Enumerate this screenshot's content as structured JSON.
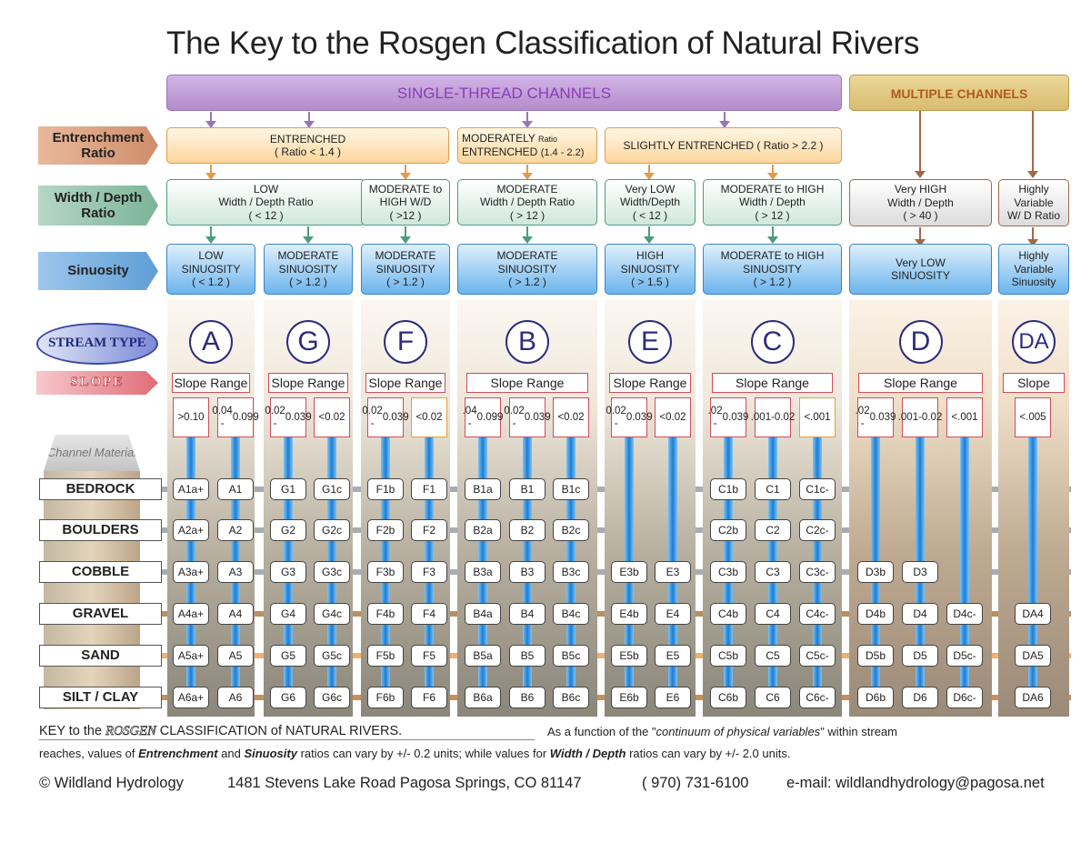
{
  "title": "The Key to the Rosgen Classification of Natural Rivers",
  "banners": {
    "single": "SINGLE-THREAD  CHANNELS",
    "multi": "MULTIPLE  CHANNELS"
  },
  "row_labels": {
    "entrenchment": "Entrenchment Ratio",
    "width_depth": "Width / Depth Ratio",
    "sinuosity": "Sinuosity",
    "stream_type": "STREAM TYPE",
    "slope": "SLOPE",
    "channel_material": "Channel Material"
  },
  "entrenchment": {
    "entrenched": [
      "ENTRENCHED",
      "( Ratio  < 1.4 )"
    ],
    "moderately": [
      "MODERATELY",
      "Ratio",
      "ENTRENCHED",
      "(1.4 - 2.2)"
    ],
    "slightly": "SLIGHTLY  ENTRENCHED ( Ratio > 2.2 )"
  },
  "width_depth": [
    [
      "LOW",
      "Width / Depth Ratio",
      "( < 12 )"
    ],
    [
      "MODERATE to",
      "HIGH   W/D",
      "( >12 )"
    ],
    [
      "MODERATE",
      "Width / Depth Ratio",
      "( > 12 )"
    ],
    [
      "Very LOW",
      "Width/Depth",
      "( < 12 )"
    ],
    [
      "MODERATE to HIGH",
      "Width / Depth",
      "( > 12 )"
    ],
    [
      "Very HIGH",
      "Width / Depth",
      "( > 40 )"
    ],
    [
      "Highly",
      "Variable",
      "W/ D Ratio"
    ]
  ],
  "sinuosity": [
    [
      "LOW",
      "SINUOSITY",
      "( < 1.2 )"
    ],
    [
      "MODERATE",
      "SINUOSITY",
      "( > 1.2 )"
    ],
    [
      "MODERATE",
      "SINUOSITY",
      "( > 1.2 )"
    ],
    [
      "MODERATE",
      "SINUOSITY",
      "( > 1.2 )"
    ],
    [
      "HIGH",
      "SINUOSITY",
      "( > 1.5 )"
    ],
    [
      "MODERATE to HIGH",
      "SINUOSITY",
      "( > 1.2 )"
    ],
    [
      "Very LOW",
      "SINUOSITY"
    ],
    [
      "Highly",
      "Variable",
      "Sinuosity"
    ]
  ],
  "materials": [
    "BEDROCK",
    "BOULDERS",
    "COBBLE",
    "GRAVEL",
    "SAND",
    "SILT / CLAY"
  ],
  "stream_types": [
    {
      "letter": "A",
      "slope_label": "Slope Range",
      "columns": [
        {
          "slope": [
            ">",
            "0.10"
          ],
          "cells": [
            "A1a+",
            "A2a+",
            "A3a+",
            "A4a+",
            "A5a+",
            "A6a+"
          ]
        },
        {
          "slope": [
            "0.04 -",
            "0.099"
          ],
          "cells": [
            "A1",
            "A2",
            "A3",
            "A4",
            "A5",
            "A6"
          ]
        }
      ]
    },
    {
      "letter": "G",
      "slope_label": "Slope Range",
      "columns": [
        {
          "slope": [
            "0.02 -",
            "0.039"
          ],
          "cells": [
            "G1",
            "G2",
            "G3",
            "G4",
            "G5",
            "G6"
          ]
        },
        {
          "slope": [
            "<0.02"
          ],
          "cells": [
            "G1c",
            "G2c",
            "G3c",
            "G4c",
            "G5c",
            "G6c"
          ]
        }
      ]
    },
    {
      "letter": "F",
      "slope_label": "Slope Range",
      "columns": [
        {
          "slope": [
            "0.02 -",
            "0.039"
          ],
          "cells": [
            "F1b",
            "F2b",
            "F3b",
            "F4b",
            "F5b",
            "F6b"
          ]
        },
        {
          "slope": [
            "<0.02"
          ],
          "cells": [
            "F1",
            "F2",
            "F3",
            "F4",
            "F5",
            "F6"
          ]
        }
      ]
    },
    {
      "letter": "B",
      "slope_label": "Slope  Range",
      "columns": [
        {
          "slope": [
            ".04 -",
            "0.099"
          ],
          "cells": [
            "B1a",
            "B2a",
            "B3a",
            "B4a",
            "B5a",
            "B6a"
          ]
        },
        {
          "slope": [
            "0.02 -",
            "0.039"
          ],
          "cells": [
            "B1",
            "B2",
            "B3",
            "B4",
            "B5",
            "B6"
          ]
        },
        {
          "slope": [
            "<0.02"
          ],
          "cells": [
            "B1c",
            "B2c",
            "B3c",
            "B4c",
            "B5c",
            "B6c"
          ]
        }
      ]
    },
    {
      "letter": "E",
      "slope_label": "Slope Range",
      "columns": [
        {
          "slope": [
            "0.02 -",
            "0.039"
          ],
          "cells": [
            "",
            "",
            "E3b",
            "E4b",
            "E5b",
            "E6b"
          ]
        },
        {
          "slope": [
            "<0.02"
          ],
          "cells": [
            "",
            "",
            "E3",
            "E4",
            "E5",
            "E6"
          ]
        }
      ]
    },
    {
      "letter": "C",
      "slope_label": "Slope  Range",
      "columns": [
        {
          "slope": [
            ".02 -",
            "0.039"
          ],
          "cells": [
            "C1b",
            "C2b",
            "C3b",
            "C4b",
            "C5b",
            "C6b"
          ]
        },
        {
          "slope": [
            ".001-",
            "0.02"
          ],
          "cells": [
            "C1",
            "C2",
            "C3",
            "C4",
            "C5",
            "C6"
          ]
        },
        {
          "slope": [
            "<.001"
          ],
          "cells": [
            "C1c-",
            "C2c-",
            "C3c-",
            "C4c-",
            "C5c-",
            "C6c-"
          ]
        }
      ]
    },
    {
      "letter": "D",
      "slope_label": "Slope  Range",
      "columns": [
        {
          "slope": [
            ".02 -",
            "0.039"
          ],
          "cells": [
            "",
            "",
            "D3b",
            "D4b",
            "D5b",
            "D6b"
          ]
        },
        {
          "slope": [
            ".001-",
            "0.02"
          ],
          "cells": [
            "",
            "",
            "D3",
            "D4",
            "D5",
            "D6"
          ]
        },
        {
          "slope": [
            "<.001"
          ],
          "cells": [
            "",
            "",
            "",
            "D4c-",
            "D5c-",
            "D6c-"
          ]
        }
      ]
    },
    {
      "letter": "DA",
      "slope_label": "Slope",
      "columns": [
        {
          "slope": [
            "<.005"
          ],
          "cells": [
            "",
            "",
            "",
            "DA4",
            "DA5",
            "DA6"
          ]
        }
      ]
    }
  ],
  "footer": {
    "key_title": "KEY to the ROSGEN  CLASSIFICATION of NATURAL RIVERS.",
    "key_title_parts": [
      "KEY to the ",
      "ROSGEN",
      "  CLASSIFICATION of NATURAL RIVERS."
    ],
    "note_1": "As a function of the  \"continuum of physical variables\"  within stream",
    "note_1_parts": [
      "As a function of the  \"",
      "continuum of physical variables",
      "\"  within stream"
    ],
    "note_2": "reaches, values of  Entrenchment and Sinuosity  ratios can vary by +/- 0.2 units; while values for Width / Depth  ratios can vary by +/- 2.0 units.",
    "note_2_parts": [
      "reaches, values of  ",
      "Entrenchment",
      " and ",
      "Sinuosity",
      "  ratios can vary by +/- 0.2 units; while values for ",
      "Width / Depth",
      "  ratios can vary by +/- 2.0 units."
    ],
    "contact": "© Wildland Hydrology      1481 Stevens Lake Road Pagosa Springs, CO 81147      ( 970) 731-6100      e-mail: wildlandhydrology@pagosa.net",
    "contact_parts": [
      "© Wildland Hydrology",
      "1481 Stevens Lake Road Pagosa Springs, CO 81147",
      "( 970) 731-6100",
      "e-mail: wildlandhydrology@pagosa.net"
    ]
  },
  "colors": {
    "single_banner": "#c4a0dc",
    "multi_banner": "#e4cc88",
    "entrenchment": "#fbd69c",
    "width_depth": "#cfe8dc",
    "sinuosity": "#6cb4ec",
    "slope_border": "#d04c5c",
    "tube": "#1c7cd4",
    "stream_letter": "#2c2c7c",
    "material_lines": [
      "#a8acb4",
      "#a8acb4",
      "#a8acb4",
      "#b89060",
      "#f0b070",
      "#c89058"
    ]
  }
}
